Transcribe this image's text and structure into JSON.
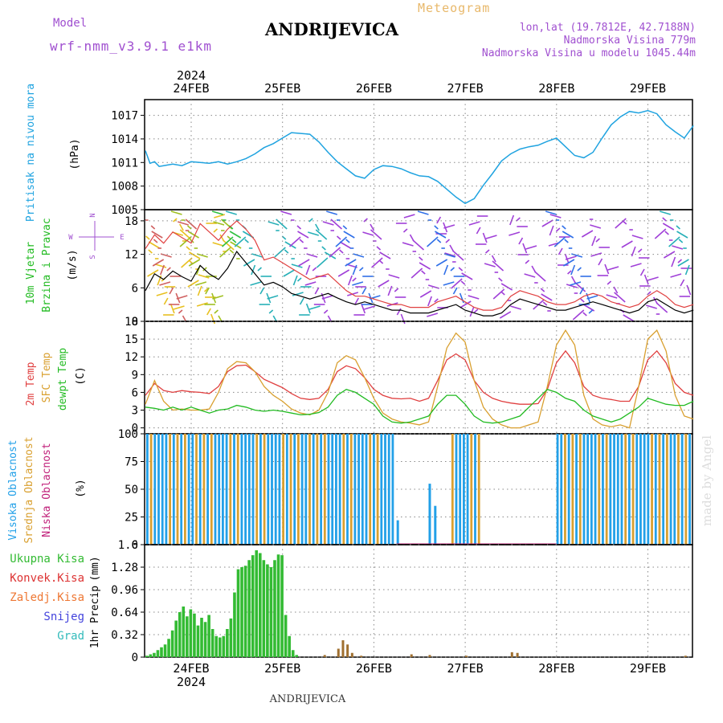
{
  "header": {
    "model_label": "Model",
    "model_name": "wrf-nmm_v3.9.1 e1km",
    "station": "ANDRIJEVICA",
    "chart_title": "Meteogram",
    "lonlat": "lon,lat (19.7812E, 42.7188N)",
    "elevation": "Nadmorska Visina 779m",
    "model_elevation": "Nadmorska Visina u modelu 1045.44m",
    "watermark": "made by Angel",
    "footer_station": "ANDRIJEVICA"
  },
  "colors": {
    "pressure": "#1fa3e0",
    "wind_green": "#22bb22",
    "temp2m": "#e04040",
    "sfc": "#d9a030",
    "dewpt": "#22bb22",
    "high_cloud": "#22a0e8",
    "mid_cloud": "#d9a030",
    "low_cloud": "#c0207a",
    "precip_total": "#33bb33",
    "precip_conv": "#dd3333",
    "precip_frozen": "#ee7733",
    "precip_snow": "#4444dd",
    "precip_hail": "#33bbbb",
    "wind_compass": "#a050d0"
  },
  "time_axis": {
    "year": "2024",
    "dates": [
      "24FEB",
      "25FEB",
      "26FEB",
      "27FEB",
      "28FEB",
      "29FEB"
    ]
  },
  "chart_data": [
    {
      "type": "line",
      "id": "pressure",
      "ylabel_1": "Pritisak na nivou mora",
      "ylabel_2": "(hPa)",
      "ylim": [
        1005,
        1019
      ],
      "yticks": [
        1005,
        1008,
        1011,
        1014,
        1017
      ],
      "grid": true,
      "x_days": [
        0,
        0.05,
        0.1,
        0.15,
        0.2,
        0.3,
        0.4,
        0.5,
        0.6,
        0.7,
        0.8,
        0.9,
        1.0,
        1.1,
        1.2,
        1.3,
        1.4,
        1.5,
        1.6,
        1.7,
        1.8,
        1.9,
        2.0,
        2.1,
        2.2,
        2.3,
        2.4,
        2.5,
        2.6,
        2.7,
        2.8,
        2.9,
        3.0,
        3.1,
        3.2,
        3.3,
        3.4,
        3.5,
        3.6,
        3.7,
        3.8,
        3.9,
        4.0,
        4.1,
        4.2,
        4.3,
        4.4,
        4.5,
        4.6,
        4.7,
        4.8,
        4.9,
        5.0,
        5.1,
        5.2,
        5.3,
        5.4,
        5.5,
        5.6,
        5.7,
        5.8,
        5.9,
        6.0
      ],
      "series": [
        {
          "values": [
            1012.5,
            1010.9,
            1011.1,
            1010.5,
            1010.6,
            1010.8,
            1010.6,
            1011.1,
            1011.0,
            1010.9,
            1011.1,
            1010.8,
            1011.1,
            1011.5,
            1012.1,
            1012.9,
            1013.4,
            1014.1,
            1014.8,
            1014.7,
            1014.6,
            1013.6,
            1012.3,
            1011.1,
            1010.2,
            1009.3,
            1009.0,
            1010.1,
            1010.6,
            1010.5,
            1010.2,
            1009.7,
            1009.3,
            1009.2,
            1008.6,
            1007.6,
            1006.6,
            1005.8,
            1006.4,
            1008.1,
            1009.6,
            1011.2,
            1012.1,
            1012.7,
            1013.0,
            1013.2,
            1013.7,
            1014.1,
            1013.0,
            1011.9,
            1011.6,
            1012.3,
            1014.1,
            1015.8,
            1016.8,
            1017.5,
            1017.3,
            1017.6,
            1017.2,
            1015.8,
            1014.9,
            1014.1,
            1015.7
          ]
        }
      ]
    },
    {
      "type": "line",
      "id": "wind",
      "ylabel_1": "10m Vjetar",
      "ylabel_2": "Brzina i Pravac",
      "ylabel_3": "(m/s)",
      "compass_n": "N",
      "compass_s": "S",
      "compass_e": "E",
      "compass_w": "W",
      "ylim": [
        0,
        20
      ],
      "yticks": [
        0,
        6,
        12,
        18
      ],
      "grid": true,
      "x_days": [
        0,
        0.1,
        0.2,
        0.3,
        0.4,
        0.5,
        0.6,
        0.7,
        0.8,
        0.9,
        1.0,
        1.1,
        1.2,
        1.3,
        1.4,
        1.5,
        1.6,
        1.7,
        1.8,
        1.9,
        2.0,
        2.1,
        2.2,
        2.3,
        2.4,
        2.5,
        2.6,
        2.7,
        2.8,
        2.9,
        3.0,
        3.1,
        3.2,
        3.3,
        3.4,
        3.5,
        3.6,
        3.7,
        3.8,
        3.9,
        4.0,
        4.1,
        4.2,
        4.3,
        4.4,
        4.5,
        4.6,
        4.7,
        4.8,
        4.9,
        5.0,
        5.1,
        5.2,
        5.3,
        5.4,
        5.5,
        5.6,
        5.7,
        5.8,
        5.9,
        6.0
      ],
      "series": [
        {
          "name_color": "#000000",
          "values": [
            5.5,
            8.5,
            7.5,
            9.0,
            8.0,
            7.2,
            10.0,
            8.5,
            7.5,
            9.5,
            12.5,
            10.5,
            8.5,
            6.5,
            7.0,
            6.2,
            5.0,
            4.5,
            4.0,
            4.5,
            5.0,
            4.2,
            3.5,
            3.0,
            3.5,
            3.0,
            2.5,
            2.0,
            2.0,
            1.5,
            1.5,
            1.5,
            2.0,
            2.5,
            3.0,
            2.0,
            1.5,
            1.0,
            1.0,
            1.5,
            3.0,
            4.0,
            3.5,
            3.0,
            2.5,
            2.0,
            2.0,
            2.5,
            3.0,
            3.5,
            3.0,
            2.5,
            2.0,
            1.5,
            2.0,
            3.5,
            4.0,
            3.0,
            2.0,
            1.5,
            2.0
          ]
        },
        {
          "name_color": "#e04040",
          "values": [
            13.0,
            15.5,
            14.0,
            16.0,
            15.0,
            14.0,
            17.5,
            16.0,
            14.5,
            16.5,
            18.0,
            16.5,
            14.5,
            11.0,
            11.5,
            10.5,
            9.5,
            8.5,
            7.5,
            8.0,
            8.5,
            7.0,
            5.5,
            4.5,
            4.5,
            4.0,
            3.5,
            3.0,
            3.0,
            2.5,
            2.5,
            2.5,
            3.5,
            4.0,
            4.5,
            3.5,
            2.5,
            2.0,
            2.0,
            2.5,
            4.5,
            5.5,
            5.0,
            4.5,
            3.5,
            3.0,
            3.0,
            3.5,
            4.5,
            5.0,
            4.5,
            3.5,
            3.0,
            2.5,
            3.0,
            4.5,
            5.5,
            4.5,
            3.0,
            2.5,
            3.0
          ]
        }
      ]
    },
    {
      "type": "line",
      "id": "temperature",
      "ylabel_1": "2m Temp",
      "ylabel_2": "SFC Temp",
      "ylabel_3": "dewpt Temp",
      "ylabel_4": "(C)",
      "ylim": [
        -1,
        18
      ],
      "yticks": [
        0,
        3,
        6,
        9,
        12,
        15,
        18
      ],
      "grid": true,
      "x_days": [
        0,
        0.1,
        0.2,
        0.3,
        0.4,
        0.5,
        0.6,
        0.7,
        0.8,
        0.9,
        1.0,
        1.1,
        1.2,
        1.3,
        1.4,
        1.5,
        1.6,
        1.7,
        1.8,
        1.9,
        2.0,
        2.1,
        2.2,
        2.3,
        2.4,
        2.5,
        2.6,
        2.7,
        2.8,
        2.9,
        3.0,
        3.1,
        3.2,
        3.3,
        3.4,
        3.5,
        3.6,
        3.7,
        3.8,
        3.9,
        4.0,
        4.1,
        4.2,
        4.3,
        4.4,
        4.5,
        4.6,
        4.7,
        4.8,
        4.9,
        5.0,
        5.1,
        5.2,
        5.3,
        5.4,
        5.5,
        5.6,
        5.7,
        5.8,
        5.9,
        6.0
      ],
      "series": [
        {
          "name": "2m Temp",
          "values": [
            5.5,
            7.5,
            6.3,
            6.0,
            6.3,
            6.1,
            6.0,
            5.8,
            7.0,
            9.5,
            10.5,
            10.6,
            9.5,
            8.2,
            7.5,
            6.8,
            5.8,
            5.0,
            4.8,
            5.0,
            6.5,
            9.5,
            10.5,
            10.0,
            8.5,
            6.5,
            5.5,
            5.0,
            4.9,
            5.0,
            4.5,
            5.0,
            8.0,
            11.5,
            12.5,
            11.5,
            8.0,
            6.0,
            5.0,
            4.5,
            4.2,
            4.0,
            4.0,
            4.1,
            6.5,
            11.0,
            13.0,
            11.0,
            7.0,
            5.5,
            5.0,
            4.8,
            4.5,
            4.5,
            7.0,
            11.5,
            13.0,
            11.0,
            7.5,
            6.0,
            5.5
          ]
        },
        {
          "name": "SFC Temp",
          "values": [
            4.0,
            8.0,
            4.5,
            3.0,
            3.2,
            3.0,
            3.0,
            3.2,
            6.0,
            10.0,
            11.2,
            11.0,
            9.5,
            7.0,
            5.5,
            4.5,
            3.2,
            2.5,
            2.2,
            3.0,
            6.0,
            11.0,
            12.2,
            11.5,
            8.5,
            5.0,
            2.5,
            1.5,
            1.0,
            0.8,
            0.5,
            1.0,
            7.0,
            13.5,
            16.0,
            14.5,
            8.0,
            3.5,
            1.5,
            0.5,
            0.0,
            0.0,
            0.5,
            1.0,
            7.0,
            14.0,
            16.5,
            14.0,
            5.5,
            1.5,
            0.5,
            0.2,
            0.5,
            0.0,
            7.0,
            15.0,
            16.5,
            13.0,
            5.5,
            2.0,
            1.5
          ]
        },
        {
          "name": "dewpt Temp",
          "values": [
            3.5,
            3.3,
            3.0,
            3.5,
            3.0,
            3.5,
            3.0,
            2.5,
            3.0,
            3.2,
            3.8,
            3.5,
            3.0,
            2.8,
            3.0,
            2.8,
            2.5,
            2.2,
            2.3,
            2.6,
            3.5,
            5.5,
            6.5,
            6.0,
            5.0,
            4.0,
            2.0,
            1.0,
            0.8,
            1.0,
            1.5,
            2.0,
            4.0,
            5.5,
            5.5,
            4.0,
            2.0,
            1.0,
            0.8,
            1.0,
            1.5,
            2.0,
            3.5,
            5.0,
            6.5,
            6.0,
            5.0,
            4.5,
            3.0,
            2.0,
            1.5,
            1.0,
            1.5,
            2.5,
            3.5,
            5.0,
            4.5,
            4.0,
            3.8,
            3.8,
            4.5
          ]
        }
      ]
    },
    {
      "type": "bar",
      "id": "cloud",
      "ylabel_1": "Visoka Oblacnost",
      "ylabel_2": "Srednja Oblacnost",
      "ylabel_3": "Niska Oblacnost",
      "ylabel_4": "(%)",
      "ylim": [
        0,
        100
      ],
      "yticks": [
        0,
        25,
        50,
        75,
        100
      ],
      "grid": true,
      "spans": [
        {
          "start": 0.0,
          "end": 2.7,
          "level": "high",
          "value": 100
        },
        {
          "start": 3.35,
          "end": 3.65,
          "level": "high",
          "value": 100
        },
        {
          "start": 4.5,
          "end": 6.0,
          "level": "high",
          "value": 100
        }
      ],
      "extra_bars": [
        {
          "x": 2.75,
          "value": 22
        },
        {
          "x": 3.1,
          "value": 55
        },
        {
          "x": 3.16,
          "value": 35
        }
      ]
    },
    {
      "type": "bar",
      "id": "precip",
      "ylabel_1": "1hr Precip",
      "ylabel_2": "(mm)",
      "legend": [
        "Ukupna Kisa",
        "Konvek.Kisa",
        "Zaledj.Kisa",
        "Snijeg",
        "Grad"
      ],
      "ylim": [
        0,
        1.6
      ],
      "yticks": [
        0,
        0.32,
        0.64,
        0.96,
        1.28,
        1.6
      ],
      "grid": true,
      "x_days": [
        0.0,
        0.04,
        0.08,
        0.12,
        0.16,
        0.2,
        0.24,
        0.28,
        0.32,
        0.36,
        0.4,
        0.44,
        0.48,
        0.52,
        0.56,
        0.6,
        0.64,
        0.68,
        0.72,
        0.76,
        0.8,
        0.84,
        0.88,
        0.92,
        0.96,
        1.0,
        1.04,
        1.08,
        1.12,
        1.16,
        1.2,
        1.24,
        1.28,
        1.32,
        1.36,
        1.4,
        1.44,
        1.48,
        1.52,
        1.56,
        1.6,
        1.64,
        1.68,
        1.72,
        1.76,
        1.8,
        1.84,
        1.88
      ],
      "values": [
        0.02,
        0.04,
        0.06,
        0.1,
        0.14,
        0.18,
        0.26,
        0.38,
        0.52,
        0.64,
        0.72,
        0.58,
        0.68,
        0.62,
        0.45,
        0.56,
        0.5,
        0.6,
        0.4,
        0.3,
        0.28,
        0.3,
        0.4,
        0.55,
        0.92,
        1.25,
        1.28,
        1.3,
        1.38,
        1.45,
        1.52,
        1.48,
        1.38,
        1.32,
        1.28,
        1.38,
        1.46,
        1.45,
        0.6,
        0.3,
        0.1,
        0.03,
        0.0,
        0.0,
        0.0,
        0.0,
        0.0,
        0.0
      ],
      "minor_bars": [
        {
          "x": 1.95,
          "value": 0.03
        },
        {
          "x": 2.1,
          "value": 0.12
        },
        {
          "x": 2.15,
          "value": 0.24
        },
        {
          "x": 2.2,
          "value": 0.18
        },
        {
          "x": 2.25,
          "value": 0.06
        },
        {
          "x": 2.35,
          "value": 0.02
        },
        {
          "x": 2.9,
          "value": 0.04
        },
        {
          "x": 3.1,
          "value": 0.03
        },
        {
          "x": 3.5,
          "value": 0.02
        },
        {
          "x": 4.0,
          "value": 0.07
        },
        {
          "x": 4.06,
          "value": 0.06
        },
        {
          "x": 5.9,
          "value": 0.02
        }
      ]
    }
  ]
}
